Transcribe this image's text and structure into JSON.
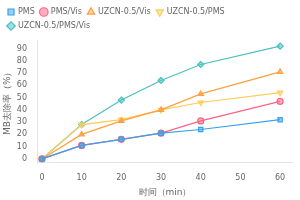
{
  "chart_data": {
    "type": "line",
    "x": [
      0,
      10,
      20,
      30,
      40,
      60
    ],
    "series": [
      {
        "name": "PMS",
        "values": [
          0,
          11,
          16,
          21,
          24,
          32
        ],
        "marker": "square",
        "line_style": "solid"
      },
      {
        "name": "PMS/Vis",
        "values": [
          0,
          11,
          16,
          21,
          31,
          47
        ],
        "marker": "circle",
        "line_style": "solid"
      },
      {
        "name": "UZCN-0.5/Vis",
        "values": [
          0,
          20,
          31,
          40,
          53,
          71
        ],
        "marker": "triangle_up",
        "line_style": "solid"
      },
      {
        "name": "UZCN-0.5/PMS",
        "values": [
          0,
          28,
          32,
          40,
          46,
          54
        ],
        "marker": "triangle_down",
        "line_style": "solid"
      },
      {
        "name": "UZCN-0.5/PMS/Vis",
        "values": [
          0,
          28,
          48,
          64,
          77,
          92
        ],
        "marker": "diamond",
        "line_style": "solid"
      }
    ],
    "xlabel": "时间（min）",
    "ylabel": "MB去除率（%）",
    "xlim": [
      -1,
      63
    ],
    "ylim": [
      -3,
      97
    ],
    "xticks": [
      0,
      10,
      20,
      30,
      40,
      50,
      60
    ],
    "yticks": [
      0,
      10,
      20,
      30,
      40,
      50,
      60,
      70,
      80,
      90
    ],
    "legend": "upper left",
    "grid": false
  }
}
